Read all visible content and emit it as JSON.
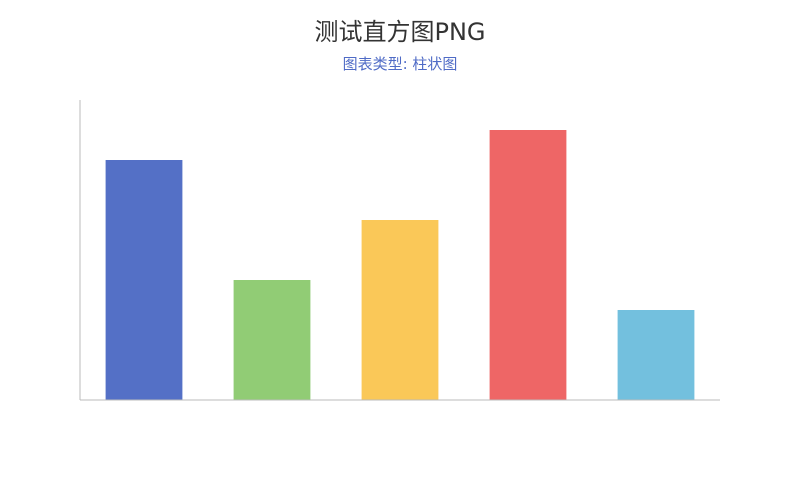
{
  "title": "测试直方图PNG",
  "subtitle": "图表类型: 柱状图",
  "colors": {
    "subtitle": "#4f6bc6",
    "axis": "#bbbbbb"
  },
  "chart_data": {
    "type": "bar",
    "title": "测试直方图PNG",
    "subtitle": "图表类型: 柱状图",
    "categories": [
      "",
      "",
      "",
      "",
      ""
    ],
    "values": [
      80,
      40,
      60,
      90,
      30
    ],
    "colors": [
      "#5470c6",
      "#91cc75",
      "#fac858",
      "#ee6666",
      "#73c0de"
    ],
    "ylim": [
      0,
      100
    ],
    "grid": false,
    "legend": "none",
    "xlabel": "",
    "ylabel": ""
  }
}
